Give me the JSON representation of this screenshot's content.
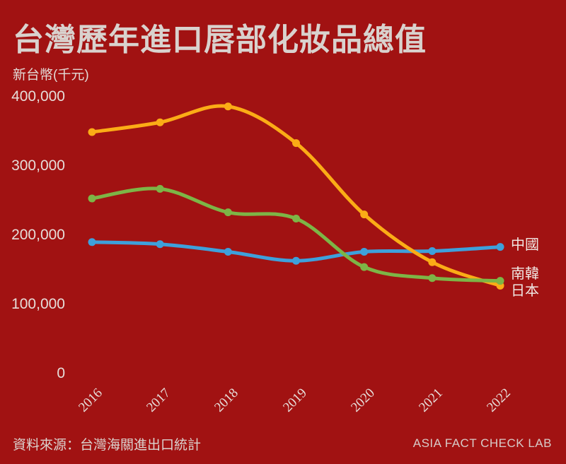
{
  "colors": {
    "background": "#A11212",
    "text_primary": "#D9D2CE",
    "text_secondary": "#E6DDD9",
    "china_line": "#3EA0DB",
    "south_korea_line": "#7DB546",
    "japan_line": "#FBAC16"
  },
  "title": "台灣歷年進口唇部化妝品總值",
  "footer": {
    "source": "資料來源：台灣海關進出口統計",
    "credit": "ASIA FACT CHECK LAB"
  },
  "chart_data": {
    "type": "line",
    "title": "台灣歷年進口唇部化妝品總值",
    "unit_label": "新台幣(千元)",
    "x": [
      "2016",
      "2017",
      "2018",
      "2019",
      "2020",
      "2021",
      "2022"
    ],
    "series": [
      {
        "name": "中國",
        "color": "#3EA0DB",
        "values": [
          190000,
          187000,
          176000,
          163000,
          176000,
          177000,
          183000
        ]
      },
      {
        "name": "南韓",
        "color": "#7DB546",
        "values": [
          253000,
          267000,
          233000,
          224000,
          154000,
          138000,
          134000
        ]
      },
      {
        "name": "日本",
        "color": "#FBAC16",
        "values": [
          349000,
          363000,
          386000,
          333000,
          230000,
          161000,
          127000
        ]
      }
    ],
    "ylim": [
      0,
      400000
    ],
    "yticks": [
      {
        "value": 0,
        "label": "0"
      },
      {
        "value": 100000,
        "label": "100,000"
      },
      {
        "value": 200000,
        "label": "200,000"
      },
      {
        "value": 300000,
        "label": "300,000"
      },
      {
        "value": 400000,
        "label": "400,000"
      }
    ],
    "grid": false,
    "marker": "circle",
    "legend_position": "right-of-line-ends"
  }
}
